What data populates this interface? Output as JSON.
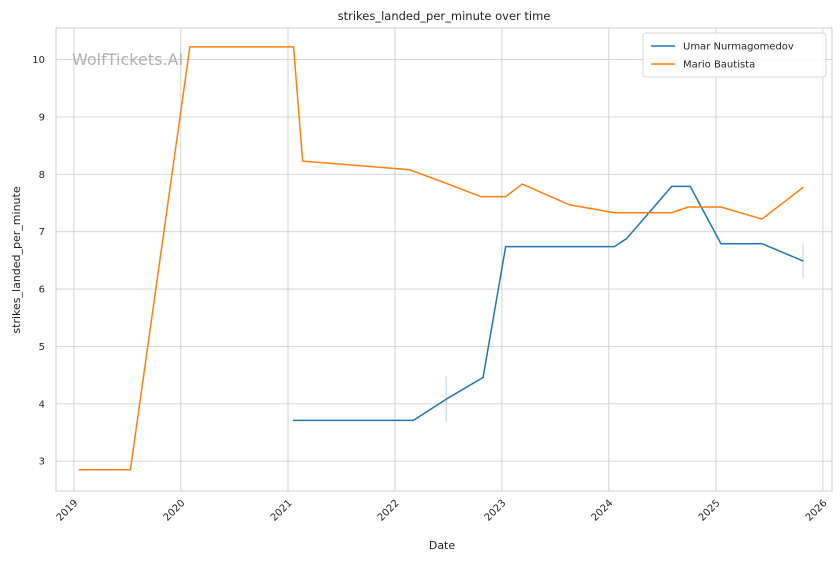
{
  "chart_data": {
    "type": "line",
    "title": "strikes_landed_per_minute over time",
    "xlabel": "Date",
    "ylabel": "strikes_landed_per_minute",
    "watermark": "WolfTickets.AI",
    "legend_position": "top-right",
    "grid": true,
    "xlim": [
      "2018-11-01",
      "2026-02-01"
    ],
    "ylim": [
      2.48,
      10.55
    ],
    "x_ticks": [
      "2019-01-01",
      "2020-01-01",
      "2021-01-01",
      "2022-01-01",
      "2023-01-01",
      "2024-01-01",
      "2025-01-01",
      "2026-01-01"
    ],
    "x_tick_labels": [
      "2019",
      "2020",
      "2021",
      "2022",
      "2023",
      "2024",
      "2025",
      "2026"
    ],
    "y_ticks": [
      3,
      4,
      5,
      6,
      7,
      8,
      9,
      10
    ],
    "y_tick_labels": [
      "3",
      "4",
      "5",
      "6",
      "7",
      "8",
      "9",
      "10"
    ],
    "series": [
      {
        "name": "Umar Nurmagomedov",
        "color": "#1f77b4",
        "points": [
          [
            "2021-01-20",
            3.71
          ],
          [
            "2022-03-05",
            3.71
          ],
          [
            "2022-06-25",
            4.08
          ],
          [
            "2022-10-29",
            4.46
          ],
          [
            "2023-01-14",
            6.74
          ],
          [
            "2024-01-20",
            6.74
          ],
          [
            "2024-03-02",
            6.88
          ],
          [
            "2024-08-03",
            7.79
          ],
          [
            "2024-10-05",
            7.79
          ],
          [
            "2025-01-18",
            6.79
          ],
          [
            "2025-06-07",
            6.79
          ],
          [
            "2025-10-25",
            6.49
          ]
        ]
      },
      {
        "name": "Mario Bautista",
        "color": "#ff7f0e",
        "points": [
          [
            "2019-01-19",
            2.85
          ],
          [
            "2019-07-13",
            2.85
          ],
          [
            "2020-02-01",
            10.22
          ],
          [
            "2021-01-20",
            10.22
          ],
          [
            "2021-02-20",
            8.23
          ],
          [
            "2022-02-19",
            8.08
          ],
          [
            "2022-06-11",
            7.87
          ],
          [
            "2022-10-22",
            7.61
          ],
          [
            "2023-01-14",
            7.61
          ],
          [
            "2023-03-11",
            7.83
          ],
          [
            "2023-08-19",
            7.47
          ],
          [
            "2024-01-20",
            7.33
          ],
          [
            "2024-06-08",
            7.33
          ],
          [
            "2024-08-03",
            7.33
          ],
          [
            "2024-09-28",
            7.43
          ],
          [
            "2025-01-18",
            7.43
          ],
          [
            "2025-06-07",
            7.22
          ],
          [
            "2025-10-25",
            7.77
          ]
        ]
      }
    ],
    "error_bars": [
      {
        "series": "Umar Nurmagomedov",
        "x": "2022-06-25",
        "low": 3.68,
        "high": 4.48
      },
      {
        "series": "Umar Nurmagomedov",
        "x": "2025-10-25",
        "low": 6.18,
        "high": 6.8
      }
    ]
  }
}
